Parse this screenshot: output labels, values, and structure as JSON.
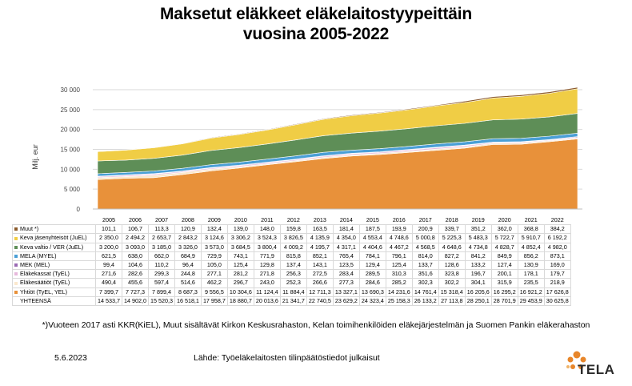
{
  "title_line1": "Maksetut eläkkeet eläkelaitostyypeittäin",
  "title_line2": "vuosina 2005-2022",
  "footnote": "*)Vuoteen 2017 asti KKR(KiEL), Muut sisältävät Kirkon Keskusrahaston, Kelan toimihenkilöiden eläkejärjestelmän ja Suomen Pankin eläkerahaston",
  "date": "5.6.2023",
  "source": "Lähde: Työeläkelaitosten tilinpäätöstiedot julkaisut",
  "logo_text": "TELA",
  "chart_data": {
    "type": "area",
    "stacked": true,
    "ylabel": "Milj. eur",
    "ylim": [
      0,
      30000
    ],
    "yticks": [
      0,
      5000,
      10000,
      15000,
      20000,
      25000,
      30000
    ],
    "ytick_labels": [
      "0",
      "5 000",
      "10 000",
      "15 000",
      "20 000",
      "25 000",
      "30 000"
    ],
    "grid": true,
    "categories": [
      "2005",
      "2006",
      "2007",
      "2008",
      "2009",
      "2010",
      "2011",
      "2012",
      "2013",
      "2014",
      "2015",
      "2016",
      "2017",
      "2018",
      "2019",
      "2020",
      "2021",
      "2022"
    ],
    "series": [
      {
        "name": "Yhtiöt (TyEL, YEL)",
        "color": "#e8913a",
        "values": [
          7399.7,
          7727.3,
          7899.4,
          8687.3,
          9556.5,
          10304.6,
          11124.4,
          11884.4,
          12711.3,
          13327.1,
          13690.3,
          14231.6,
          14761.4,
          15318.4,
          16205.6,
          16295.2,
          16921.2,
          17626.8
        ],
        "labels": [
          "7 399,7",
          "7 727,3",
          "7 899,4",
          "8 687,3",
          "9 556,5",
          "10 304,6",
          "11 124,4",
          "11 884,4",
          "12 711,3",
          "13 327,1",
          "13 690,3",
          "14 231,6",
          "14 761,4",
          "15 318,4",
          "16 205,6",
          "16 295,2",
          "16 921,2",
          "17 626,8"
        ]
      },
      {
        "name": "Eläkesäätiöt (TyEL)",
        "color": "#fbe8cd",
        "values": [
          490.4,
          455.6,
          597.4,
          514.6,
          462.2,
          296.7,
          243.0,
          252.3,
          266.6,
          277.3,
          284.6,
          285.2,
          302.3,
          302.2,
          304.1,
          315.9,
          235.5,
          218.9
        ],
        "labels": [
          "490,4",
          "455,6",
          "597,4",
          "514,6",
          "462,2",
          "296,7",
          "243,0",
          "252,3",
          "266,6",
          "277,3",
          "284,6",
          "285,2",
          "302,3",
          "302,2",
          "304,1",
          "315,9",
          "235,5",
          "218,9"
        ]
      },
      {
        "name": "Eläkekassat (TyEL)",
        "color": "#e7b8dc",
        "values": [
          271.6,
          282.6,
          299.3,
          244.8,
          277.1,
          281.2,
          271.8,
          256.3,
          272.5,
          283.4,
          289.5,
          310.3,
          351.6,
          323.8,
          196.7,
          200.1,
          178.1,
          179.7
        ],
        "labels": [
          "271,6",
          "282,6",
          "299,3",
          "244,8",
          "277,1",
          "281,2",
          "271,8",
          "256,3",
          "272,5",
          "283,4",
          "289,5",
          "310,3",
          "351,6",
          "323,8",
          "196,7",
          "200,1",
          "178,1",
          "179,7"
        ]
      },
      {
        "name": "MEK (MEL)",
        "color": "#9a6ab3",
        "values": [
          99.4,
          104.6,
          110.2,
          96.4,
          105.0,
          125.4,
          129.8,
          137.4,
          143.1,
          123.5,
          129.4,
          125.4,
          133.7,
          128.6,
          133.2,
          127.4,
          130.9,
          169.0
        ],
        "labels": [
          "99,4",
          "104,6",
          "110,2",
          "96,4",
          "105,0",
          "125,4",
          "129,8",
          "137,4",
          "143,1",
          "123,5",
          "129,4",
          "125,4",
          "133,7",
          "128,6",
          "133,2",
          "127,4",
          "130,9",
          "169,0"
        ]
      },
      {
        "name": "MELA (MYEL)",
        "color": "#4a9fd6",
        "values": [
          621.5,
          638.0,
          662.0,
          684.9,
          729.9,
          743.1,
          771.9,
          815.8,
          852.1,
          765.4,
          784.1,
          796.1,
          814.0,
          827.2,
          841.2,
          849.9,
          856.2,
          873.1
        ],
        "labels": [
          "621,5",
          "638,0",
          "662,0",
          "684,9",
          "729,9",
          "743,1",
          "771,9",
          "815,8",
          "852,1",
          "765,4",
          "784,1",
          "796,1",
          "814,0",
          "827,2",
          "841,2",
          "849,9",
          "856,2",
          "873,1"
        ]
      },
      {
        "name": "Keva valtio / VER (JuEL)",
        "color": "#5e8e57",
        "values": [
          3200.0,
          3093.0,
          3185.0,
          3326.0,
          3573.0,
          3684.5,
          3800.4,
          4009.2,
          4195.7,
          4317.1,
          4404.6,
          4467.2,
          4568.5,
          4648.6,
          4734.8,
          4828.7,
          4852.4,
          4982.0
        ],
        "labels": [
          "3 200,0",
          "3 093,0",
          "3 185,0",
          "3 326,0",
          "3 573,0",
          "3 684,5",
          "3 800,4",
          "4 009,2",
          "4 195,7",
          "4 317,1",
          "4 404,6",
          "4 467,2",
          "4 568,5",
          "4 648,6",
          "4 734,8",
          "4 828,7",
          "4 852,4",
          "4 982,0"
        ]
      },
      {
        "name": "Keva jäsenyhteisöt (JuEL)",
        "color": "#f0cd45",
        "values": [
          2350.0,
          2494.2,
          2653.7,
          2843.2,
          3124.6,
          3306.2,
          3524.3,
          3826.5,
          4135.9,
          4354.0,
          4553.4,
          4748.6,
          5000.8,
          5225.3,
          5483.3,
          5722.7,
          5910.7,
          6192.2
        ],
        "labels": [
          "2 350,0",
          "2 494,2",
          "2 653,7",
          "2 843,2",
          "3 124,6",
          "3 306,2",
          "3 524,3",
          "3 826,5",
          "4 135,9",
          "4 354,0",
          "4 553,4",
          "4 748,6",
          "5 000,8",
          "5 225,3",
          "5 483,3",
          "5 722,7",
          "5 910,7",
          "6 192,2"
        ]
      },
      {
        "name": "Muut *)",
        "color": "#8b5a2b",
        "values": [
          101.1,
          106.7,
          113.3,
          120.9,
          132.4,
          139.0,
          148.0,
          159.8,
          163.5,
          181.4,
          187.5,
          193.9,
          200.9,
          339.7,
          351.2,
          362.0,
          368.8,
          384.2
        ],
        "labels": [
          "101,1",
          "106,7",
          "113,3",
          "120,9",
          "132,4",
          "139,0",
          "148,0",
          "159,8",
          "163,5",
          "181,4",
          "187,5",
          "193,9",
          "200,9",
          "339,7",
          "351,2",
          "362,0",
          "368,8",
          "384,2"
        ]
      }
    ],
    "total": {
      "name": "YHTEENSÄ",
      "values": [
        14533.7,
        14902.0,
        15520.3,
        16518.1,
        17958.7,
        18880.7,
        20013.6,
        21341.7,
        22740.5,
        23629.2,
        24323.4,
        25158.3,
        26133.2,
        27113.8,
        28250.1,
        28701.9,
        29453.9,
        30625.8
      ],
      "labels": [
        "14 533,7",
        "14 902,0",
        "15 520,3",
        "16 518,1",
        "17 958,7",
        "18 880,7",
        "20 013,6",
        "21 341,7",
        "22 740,5",
        "23 629,2",
        "24 323,4",
        "25 158,3",
        "26 133,2",
        "27 113,8",
        "28 250,1",
        "28 701,9",
        "29 453,9",
        "30 625,8"
      ]
    }
  }
}
